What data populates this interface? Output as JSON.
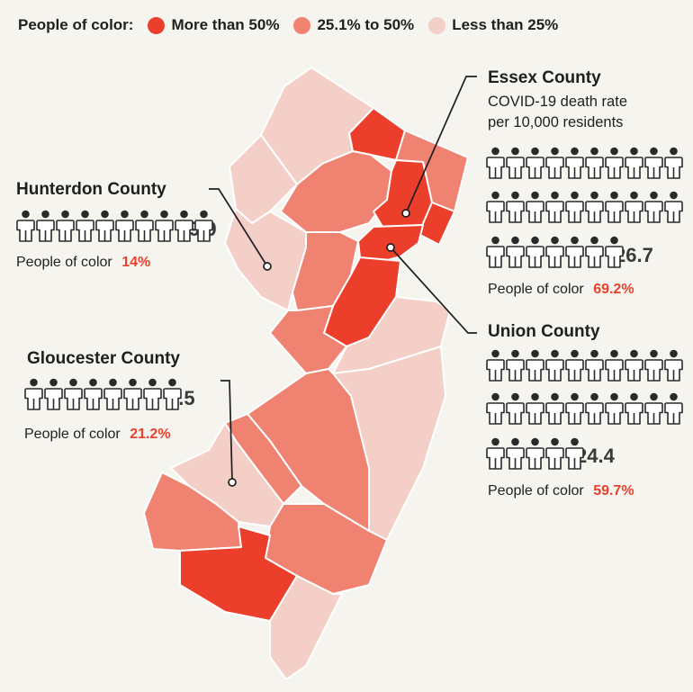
{
  "legend": {
    "label": "People of color:",
    "items": [
      {
        "label": "More than 50%",
        "color": "#ec3f2b"
      },
      {
        "label": "25.1% to 50%",
        "color": "#ef8271"
      },
      {
        "label": "Less than 25%",
        "color": "#f4cfc8"
      }
    ]
  },
  "essex": {
    "title": "Essex County",
    "subtitle_1": "COVID-19 death rate",
    "subtitle_2": "per 10,000 residents",
    "rate": "26.7",
    "people_label": "People of color",
    "pct": "69.2%"
  },
  "union": {
    "title": "Union County",
    "rate": "24.4",
    "people_label": "People of color",
    "pct": "59.7%"
  },
  "hunterdon": {
    "title": "Hunterdon County",
    "rate": "9.9",
    "people_label": "People of color",
    "pct": "14%"
  },
  "gloucester": {
    "title": "Gloucester County",
    "rate": "7.5",
    "people_label": "People of color",
    "pct": "21.2%"
  },
  "icons": {
    "person": "person-icon"
  }
}
